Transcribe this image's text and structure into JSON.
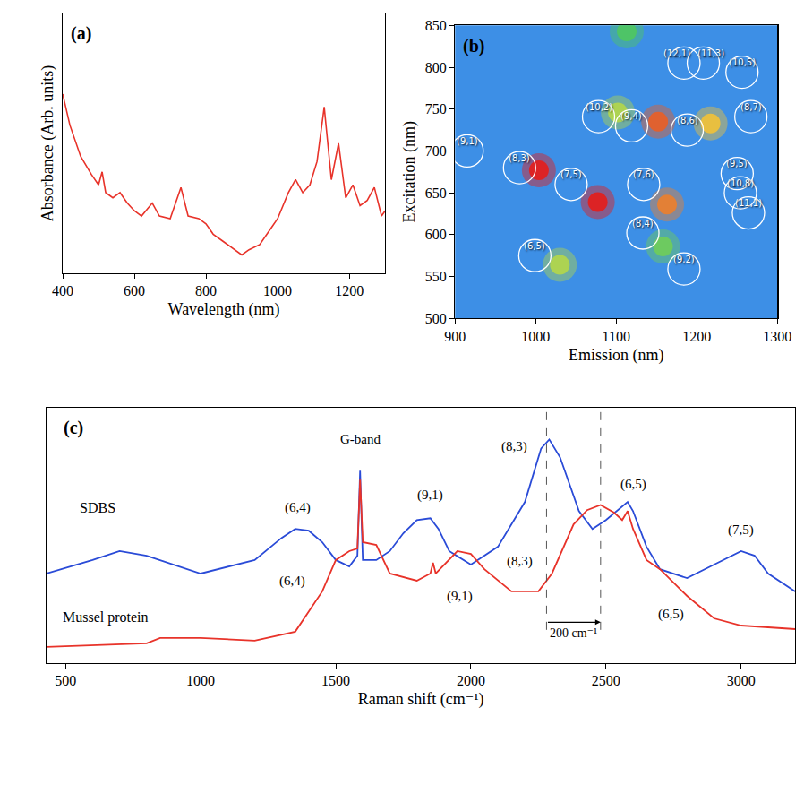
{
  "chart_data": [
    {
      "type": "line",
      "label": "(a)",
      "x_label": "Wavelength (nm)",
      "y_label": "Absorbance (Arb. units)",
      "x": [
        400,
        420,
        450,
        480,
        500,
        510,
        520,
        540,
        560,
        580,
        600,
        620,
        650,
        670,
        700,
        730,
        750,
        780,
        800,
        820,
        850,
        880,
        900,
        920,
        950,
        980,
        1000,
        1030,
        1050,
        1070,
        1090,
        1110,
        1130,
        1150,
        1170,
        1190,
        1210,
        1230,
        1250,
        1270,
        1290,
        1300
      ],
      "values": [
        6.9,
        5.7,
        4.5,
        3.8,
        3.4,
        3.9,
        3.1,
        2.9,
        3.1,
        2.7,
        2.4,
        2.2,
        2.7,
        2.2,
        2.1,
        3.3,
        2.2,
        2.1,
        1.9,
        1.5,
        1.2,
        0.9,
        0.7,
        0.9,
        1.1,
        1.7,
        2.1,
        3.1,
        3.6,
        3.1,
        3.4,
        4.3,
        6.4,
        3.6,
        5.0,
        2.9,
        3.4,
        2.6,
        2.8,
        3.3,
        2.2,
        2.4
      ],
      "color": "#e8332a",
      "xlim": [
        400,
        1300
      ],
      "xticks": [
        400,
        600,
        800,
        1000,
        1200
      ],
      "ylim": [
        0,
        10
      ],
      "tick_labels": "x"
    },
    {
      "type": "heatmap",
      "label": "(b)",
      "x_label": "Emission (nm)",
      "y_label": "Excitation (nm)",
      "xlim": [
        900,
        1300
      ],
      "xticks": [
        900,
        1000,
        1100,
        1200,
        1300
      ],
      "ylim": [
        500,
        850
      ],
      "yticks": [
        500,
        550,
        600,
        650,
        700,
        750,
        800,
        850
      ],
      "peaks": {
        "x": [
          1004,
          1077,
          1163,
          1102,
          1152,
          1217,
          1030,
          1158,
          1113
        ],
        "y": [
          677,
          639,
          636,
          746,
          735,
          733,
          564,
          586,
          843
        ],
        "values": [
          1.0,
          1.0,
          0.85,
          0.6,
          0.9,
          0.75,
          0.6,
          0.5,
          0.45
        ]
      },
      "zlim": [
        0,
        1
      ],
      "assignments": [
        {
          "label": "(12,1)",
          "x": 1184,
          "y": 805
        },
        {
          "label": "(11,3)",
          "x": 1208,
          "y": 805
        },
        {
          "label": "(10,5)",
          "x": 1256,
          "y": 794
        },
        {
          "label": "(10,2)",
          "x": 1078,
          "y": 741
        },
        {
          "label": "(9,4)",
          "x": 1119,
          "y": 730
        },
        {
          "label": "(8,6)",
          "x": 1188,
          "y": 725
        },
        {
          "label": "(8,7)",
          "x": 1267,
          "y": 741
        },
        {
          "label": "(9,1)",
          "x": 915,
          "y": 700
        },
        {
          "label": "(8,3)",
          "x": 980,
          "y": 680
        },
        {
          "label": "(7,5)",
          "x": 1044,
          "y": 660
        },
        {
          "label": "(7,6)",
          "x": 1134,
          "y": 660
        },
        {
          "label": "(9,5)",
          "x": 1250,
          "y": 673
        },
        {
          "label": "(10,8)",
          "x": 1254,
          "y": 650
        },
        {
          "label": "(11,1)",
          "x": 1264,
          "y": 626
        },
        {
          "label": "(8,4)",
          "x": 1133,
          "y": 602
        },
        {
          "label": "(9,2)",
          "x": 1184,
          "y": 559
        },
        {
          "label": "(6,5)",
          "x": 999,
          "y": 575
        }
      ]
    },
    {
      "type": "line",
      "label": "(c)",
      "x_label": "Raman shift (cm⁻¹)",
      "xlim": [
        430,
        3200
      ],
      "xticks": [
        500,
        1000,
        1500,
        2000,
        2500,
        3000
      ],
      "ylim": [
        0,
        10
      ],
      "tick_labels": "x",
      "series": [
        {
          "name": "SDBS",
          "color": "#2a4bd7",
          "label_at": [
            620,
            6.1
          ],
          "x": [
            430,
            600,
            700,
            800,
            1000,
            1200,
            1300,
            1350,
            1400,
            1450,
            1500,
            1550,
            1580,
            1590,
            1600,
            1650,
            1700,
            1750,
            1800,
            1850,
            1880,
            1920,
            2000,
            2100,
            2200,
            2260,
            2290,
            2330,
            2400,
            2450,
            2500,
            2560,
            2580,
            2600,
            2650,
            2700,
            2800,
            2900,
            3000,
            3050,
            3100,
            3200
          ],
          "values": [
            3.51,
            4.04,
            4.39,
            4.21,
            3.51,
            4.04,
            4.91,
            5.26,
            5.19,
            4.74,
            4.04,
            3.79,
            4.21,
            7.54,
            4.04,
            4.04,
            4.39,
            5.09,
            5.61,
            5.68,
            5.26,
            4.39,
            3.86,
            4.56,
            6.32,
            8.42,
            8.77,
            8.07,
            5.96,
            5.26,
            5.61,
            6.14,
            6.32,
            5.96,
            4.56,
            3.68,
            3.33,
            3.86,
            4.39,
            4.21,
            3.51,
            2.81
          ]
        },
        {
          "name": "Mussel protein",
          "color": "#e8332a",
          "label_at": [
            650,
            1.8
          ],
          "x": [
            430,
            800,
            850,
            1000,
            1200,
            1350,
            1450,
            1500,
            1550,
            1580,
            1590,
            1600,
            1650,
            1700,
            1800,
            1850,
            1860,
            1870,
            1950,
            2000,
            2050,
            2150,
            2250,
            2300,
            2380,
            2430,
            2480,
            2530,
            2560,
            2580,
            2600,
            2650,
            2700,
            2800,
            2900,
            3000,
            3200
          ],
          "values": [
            0.63,
            0.77,
            0.98,
            0.98,
            0.88,
            1.23,
            2.81,
            4.04,
            4.39,
            4.49,
            7.19,
            4.74,
            4.63,
            3.51,
            3.23,
            3.51,
            3.93,
            3.51,
            4.39,
            4.28,
            3.68,
            2.81,
            2.81,
            3.51,
            5.44,
            6.0,
            6.2,
            5.9,
            5.61,
            5.96,
            5.26,
            4.04,
            3.68,
            2.63,
            1.75,
            1.47,
            1.33
          ]
        }
      ],
      "annotations": [
        {
          "text": "G-band",
          "x": 1590,
          "y": 8.8
        },
        {
          "text": "(6,4)",
          "x": 1360,
          "y": 6.1
        },
        {
          "text": "(9,1)",
          "x": 1850,
          "y": 6.6
        },
        {
          "text": "(8,3)",
          "x": 2160,
          "y": 8.5
        },
        {
          "text": "(6,5)",
          "x": 2600,
          "y": 7.0
        },
        {
          "text": "(7,5)",
          "x": 3000,
          "y": 5.2
        },
        {
          "text": "(6,4)",
          "x": 1340,
          "y": 3.2
        },
        {
          "text": "(9,1)",
          "x": 1960,
          "y": 2.6
        },
        {
          "text": "(8,3)",
          "x": 2180,
          "y": 4.0
        },
        {
          "text": "(6,5)",
          "x": 2740,
          "y": 1.9
        }
      ],
      "vlines": [
        2280,
        2480
      ],
      "span_label": {
        "text": "200 cm⁻¹",
        "y": 1.6
      }
    }
  ]
}
